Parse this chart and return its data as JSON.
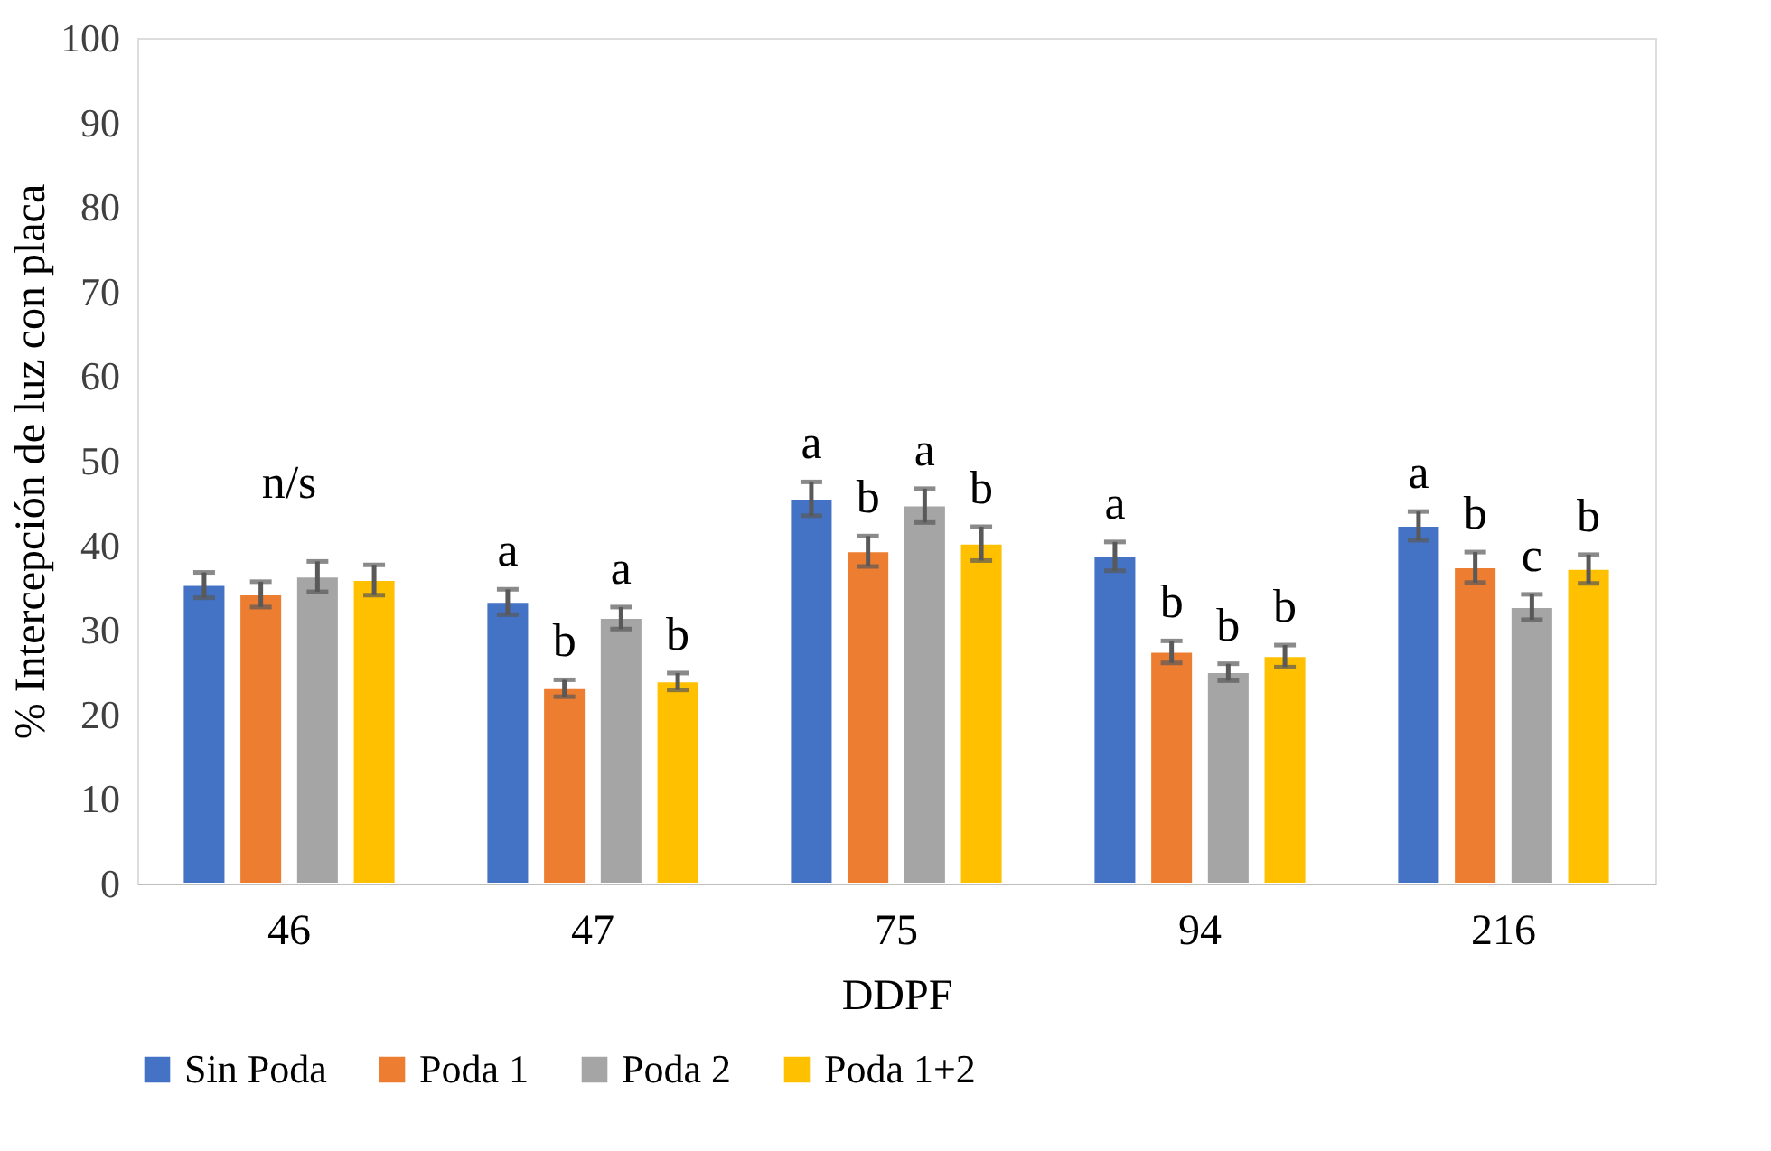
{
  "chart_data": {
    "type": "bar",
    "xlabel": "DDPF",
    "ylabel": "% Intercepción de luz con placa",
    "categories": [
      "46",
      "47",
      "75",
      "94",
      "216"
    ],
    "series": [
      {
        "name": "Sin Poda",
        "color": "#4472c4",
        "values": [
          35.3,
          33.3,
          45.5,
          38.7,
          42.3
        ],
        "errors": [
          1.5,
          1.5,
          2,
          1.7,
          1.7
        ],
        "value_labels": [
          null,
          "a",
          "a",
          "a",
          "a"
        ]
      },
      {
        "name": "Poda 1",
        "color": "#ed7d31",
        "values": [
          34.2,
          23.1,
          39.3,
          27.4,
          37.4
        ],
        "errors": [
          1.5,
          1,
          1.8,
          1.3,
          1.8
        ],
        "value_labels": [
          null,
          "b",
          "b",
          "b",
          "b"
        ]
      },
      {
        "name": "Poda 2",
        "color": "#a5a5a5",
        "values": [
          36.3,
          31.4,
          44.7,
          25.0,
          32.7
        ],
        "errors": [
          1.8,
          1.3,
          2,
          1,
          1.5
        ],
        "value_labels": [
          null,
          "a",
          "a",
          "b",
          "c"
        ]
      },
      {
        "name": "Poda 1+2",
        "color": "#ffc000",
        "values": [
          35.9,
          23.9,
          40.2,
          26.9,
          37.2
        ],
        "errors": [
          1.8,
          1,
          2,
          1.3,
          1.7
        ],
        "value_labels": [
          null,
          "b",
          "b",
          "b",
          "b"
        ]
      }
    ],
    "annotations": [
      "n/s"
    ],
    "ylim": [
      0,
      100
    ],
    "yticks": [
      0,
      10,
      20,
      30,
      40,
      50,
      60,
      70,
      80,
      90,
      100
    ],
    "grid": false,
    "legend": "bottom"
  }
}
